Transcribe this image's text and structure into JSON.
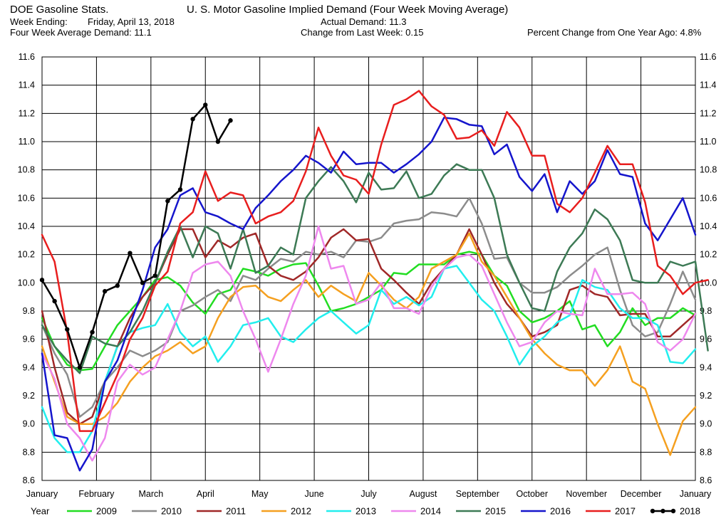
{
  "header": {
    "app_title": "DOE Gasoline Stats.",
    "chart_title": "U. S. Motor Gasoline Implied Demand (Four Week Moving Average)",
    "week_ending_label": "Week Ending:",
    "week_ending_value": "Friday, April 13, 2018",
    "four_week_avg": "Four Week Average Demand: 11.1",
    "actual_demand": "Actual Demand: 11.3",
    "change_last_week": "Change from Last Week: 0.15",
    "pct_change_year": "Percent Change from One Year Ago:  4.8%"
  },
  "chart_data": {
    "type": "line",
    "ylim": [
      8.6,
      11.6
    ],
    "yticks": [
      "8.6",
      "8.8",
      "9.0",
      "9.2",
      "9.4",
      "9.6",
      "9.8",
      "10.0",
      "10.2",
      "10.4",
      "10.6",
      "10.8",
      "11.0",
      "11.2",
      "11.4",
      "11.6"
    ],
    "xlim": [
      0,
      52
    ],
    "month_labels": [
      "January",
      "February",
      "March",
      "April",
      "May",
      "June",
      "July",
      "August",
      "September",
      "October",
      "November",
      "December",
      "January"
    ],
    "legend_title": "Year",
    "grid": true,
    "series": [
      {
        "name": "2009",
        "color": "#22dd22",
        "values": [
          9.75,
          9.55,
          9.42,
          9.38,
          9.39,
          9.55,
          9.7,
          9.8,
          9.9,
          10.02,
          10.04,
          9.98,
          9.86,
          9.78,
          9.92,
          9.95,
          10.1,
          10.08,
          10.05,
          10.1,
          10.13,
          10.14,
          9.98,
          9.8,
          9.82,
          9.85,
          9.9,
          9.95,
          10.07,
          10.06,
          10.13,
          10.13,
          10.13,
          10.2,
          10.22,
          10.2,
          10.05,
          9.98,
          9.8,
          9.72,
          9.75,
          9.8,
          9.87,
          9.67,
          9.7,
          9.55,
          9.65,
          9.82,
          9.7,
          9.75,
          9.75,
          9.82,
          9.77
        ]
      },
      {
        "name": "2010",
        "color": "#8c8c8c",
        "values": [
          9.7,
          9.5,
          9.35,
          9.05,
          9.12,
          9.3,
          9.4,
          9.52,
          9.48,
          9.52,
          9.58,
          9.8,
          9.84,
          9.9,
          9.95,
          9.87,
          10.05,
          10.02,
          10.1,
          10.17,
          10.15,
          10.22,
          10.2,
          10.22,
          10.18,
          10.3,
          10.29,
          10.32,
          10.42,
          10.44,
          10.45,
          10.5,
          10.49,
          10.47,
          10.6,
          10.42,
          10.17,
          10.18,
          10.0,
          9.93,
          9.93,
          9.97,
          10.05,
          10.12,
          10.2,
          10.25,
          9.95,
          9.7,
          9.62,
          9.65,
          9.85,
          10.08,
          9.88
        ]
      },
      {
        "name": "2011",
        "color": "#a02828",
        "values": [
          9.8,
          9.4,
          9.08,
          9.0,
          9.05,
          9.3,
          9.55,
          9.75,
          9.9,
          10.0,
          10.2,
          10.38,
          10.38,
          10.18,
          10.3,
          10.25,
          10.32,
          10.35,
          10.12,
          10.05,
          10.02,
          10.08,
          10.18,
          10.32,
          10.38,
          10.3,
          10.31,
          10.1,
          10.02,
          9.93,
          9.85,
          10.0,
          10.1,
          10.2,
          10.38,
          10.2,
          10.0,
          9.85,
          9.75,
          9.62,
          9.65,
          9.7,
          9.95,
          9.98,
          9.92,
          9.9,
          9.77,
          9.78,
          9.78,
          9.62,
          9.62,
          9.7,
          9.78
        ]
      },
      {
        "name": "2012",
        "color": "#f5a020",
        "values": [
          9.55,
          9.3,
          9.05,
          9.0,
          9.0,
          9.05,
          9.15,
          9.3,
          9.4,
          9.48,
          9.52,
          9.58,
          9.5,
          9.55,
          9.75,
          9.9,
          9.97,
          9.98,
          9.9,
          9.87,
          9.95,
          10.02,
          9.9,
          9.98,
          9.92,
          9.87,
          10.07,
          9.98,
          9.88,
          9.82,
          9.9,
          10.1,
          10.15,
          10.2,
          10.35,
          10.15,
          10.05,
          9.9,
          9.75,
          9.6,
          9.5,
          9.42,
          9.38,
          9.38,
          9.27,
          9.38,
          9.55,
          9.3,
          9.25,
          9.0,
          8.78,
          9.02,
          9.12
        ]
      },
      {
        "name": "2013",
        "color": "#22eeee",
        "values": [
          9.12,
          8.9,
          8.8,
          8.8,
          8.95,
          9.3,
          9.55,
          9.65,
          9.68,
          9.7,
          9.85,
          9.65,
          9.55,
          9.62,
          9.44,
          9.55,
          9.7,
          9.72,
          9.75,
          9.62,
          9.58,
          9.67,
          9.75,
          9.8,
          9.72,
          9.64,
          9.7,
          9.95,
          9.85,
          9.9,
          9.84,
          9.9,
          10.1,
          10.12,
          10.0,
          9.88,
          9.8,
          9.62,
          9.42,
          9.55,
          9.62,
          9.72,
          9.77,
          10.02,
          9.97,
          9.95,
          9.82,
          9.75,
          9.75,
          9.7,
          9.44,
          9.43,
          9.53
        ]
      },
      {
        "name": "2014",
        "color": "#ee88ee",
        "values": [
          9.5,
          9.32,
          9.0,
          8.9,
          8.74,
          8.9,
          9.3,
          9.42,
          9.35,
          9.4,
          9.6,
          9.8,
          10.07,
          10.13,
          10.15,
          10.05,
          9.8,
          9.6,
          9.37,
          9.6,
          9.85,
          10.05,
          10.4,
          10.1,
          10.12,
          9.85,
          9.88,
          10.0,
          9.82,
          9.82,
          9.78,
          9.97,
          10.1,
          10.18,
          10.2,
          10.12,
          9.92,
          9.72,
          9.55,
          9.58,
          9.72,
          9.8,
          9.78,
          9.77,
          10.1,
          9.92,
          9.92,
          9.93,
          9.85,
          9.58,
          9.52,
          9.6,
          9.78
        ]
      },
      {
        "name": "2015",
        "color": "#3d7a55",
        "values": [
          9.7,
          9.55,
          9.45,
          9.36,
          9.62,
          9.57,
          9.55,
          9.65,
          9.8,
          10.0,
          10.22,
          10.4,
          10.18,
          10.4,
          10.35,
          10.1,
          10.38,
          10.07,
          10.12,
          10.25,
          10.2,
          10.6,
          10.72,
          10.82,
          10.72,
          10.57,
          10.78,
          10.66,
          10.67,
          10.79,
          10.6,
          10.63,
          10.76,
          10.84,
          10.8,
          10.8,
          10.6,
          10.2,
          10.0,
          9.82,
          9.8,
          10.08,
          10.25,
          10.35,
          10.52,
          10.45,
          10.3,
          10.02,
          10.0,
          10.0,
          10.15,
          10.12,
          10.15,
          9.52
        ]
      },
      {
        "name": "2016",
        "color": "#1515cc",
        "values": [
          9.5,
          8.92,
          8.9,
          8.67,
          8.82,
          9.3,
          9.45,
          9.7,
          9.95,
          10.25,
          10.38,
          10.62,
          10.67,
          10.5,
          10.47,
          10.42,
          10.38,
          10.53,
          10.62,
          10.72,
          10.8,
          10.9,
          10.85,
          10.78,
          10.93,
          10.84,
          10.85,
          10.85,
          10.78,
          10.84,
          10.91,
          11.0,
          11.17,
          11.16,
          11.12,
          11.11,
          10.91,
          10.98,
          10.75,
          10.65,
          10.77,
          10.5,
          10.72,
          10.63,
          10.72,
          10.94,
          10.77,
          10.75,
          10.42,
          10.3,
          10.45,
          10.6,
          10.34
        ]
      },
      {
        "name": "2017",
        "color": "#e81e1e",
        "values": [
          10.34,
          10.15,
          9.65,
          8.95,
          8.95,
          9.15,
          9.35,
          9.6,
          9.75,
          9.98,
          10.08,
          10.42,
          10.5,
          10.79,
          10.58,
          10.64,
          10.62,
          10.42,
          10.47,
          10.5,
          10.58,
          10.79,
          11.1,
          10.9,
          10.76,
          10.73,
          10.63,
          10.98,
          11.26,
          11.3,
          11.36,
          11.25,
          11.19,
          11.02,
          11.03,
          11.08,
          10.97,
          11.21,
          11.1,
          10.9,
          10.9,
          10.56,
          10.5,
          10.6,
          10.78,
          10.97,
          10.84,
          10.84,
          10.57,
          10.12,
          10.05,
          9.92,
          10.0,
          10.02
        ]
      },
      {
        "name": "2018",
        "color": "#000000",
        "values": [
          10.02,
          9.87,
          9.67,
          9.4,
          9.65,
          9.94,
          9.98,
          10.21,
          10.0,
          10.05,
          10.58,
          10.66,
          11.16,
          11.26,
          11.0,
          11.15
        ]
      }
    ]
  }
}
